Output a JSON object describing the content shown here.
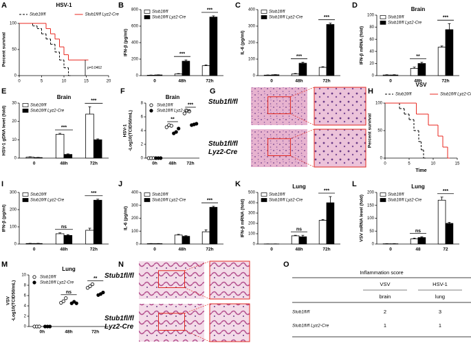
{
  "chart_data": [
    {
      "label": "A",
      "type": "survival",
      "title": "HSV-1",
      "ylabel": "Percent survival",
      "xlim": [
        0,
        20
      ],
      "xticks": [
        0,
        5,
        10,
        15,
        20
      ],
      "ylim": [
        0,
        100
      ],
      "yticks": [
        0,
        50,
        100
      ],
      "legend": "top",
      "series": [
        {
          "name": "Stub1fl/fl",
          "color": "#000000",
          "line_style": "dashed",
          "x": [
            0,
            3,
            4,
            5,
            6,
            7,
            8,
            9,
            10,
            11
          ],
          "values": [
            100,
            95,
            90,
            80,
            70,
            60,
            45,
            30,
            15,
            0
          ]
        },
        {
          "name": "Stub1fl/fl Lyz2-Cre",
          "color": "#e8261e",
          "line_style": "solid",
          "x": [
            0,
            6,
            7,
            8,
            9,
            10,
            11,
            15
          ],
          "values": [
            100,
            90,
            80,
            70,
            55,
            40,
            30,
            30
          ]
        }
      ],
      "annotations": [
        {
          "text": "p=0.0462"
        }
      ]
    },
    {
      "label": "B",
      "type": "bar",
      "ylabel": "IFN-β (pg/ml)",
      "categories": [
        "0",
        "48h",
        "72h"
      ],
      "ylim": [
        0,
        800
      ],
      "yticks": [
        0,
        200,
        400,
        600,
        800
      ],
      "legend": "upper left",
      "series": [
        {
          "name": "Stub1fl/fl",
          "color": "#ffffff",
          "values": [
            5,
            20,
            120
          ],
          "errors": [
            2,
            5,
            10
          ]
        },
        {
          "name": "Stub1fl/fl Lyz2-Cre",
          "color": "#000000",
          "values": [
            8,
            175,
            710
          ],
          "errors": [
            2,
            15,
            15
          ]
        }
      ],
      "annotations": [
        {
          "text": "***",
          "category": 1
        },
        {
          "text": "***",
          "category": 2
        }
      ]
    },
    {
      "label": "C",
      "type": "bar",
      "ylabel": "IL-6 (pg/ml)",
      "categories": [
        "0",
        "48h",
        "72h"
      ],
      "ylim": [
        0,
        400
      ],
      "yticks": [
        0,
        100,
        200,
        300,
        400
      ],
      "legend": "upper left",
      "series": [
        {
          "name": "Stub1fl/fl",
          "color": "#ffffff",
          "values": [
            3,
            10,
            50
          ],
          "errors": [
            1,
            3,
            4
          ]
        },
        {
          "name": "Stub1fl/fl Lyz2-Cre",
          "color": "#000000",
          "values": [
            5,
            75,
            310
          ],
          "errors": [
            1,
            6,
            8
          ]
        }
      ],
      "annotations": [
        {
          "text": "***",
          "category": 1
        },
        {
          "text": "***",
          "category": 2
        }
      ]
    },
    {
      "label": "D",
      "type": "bar",
      "title": "Brain",
      "ylabel": "IFN-β mRNA (fold)",
      "categories": [
        "0",
        "48h",
        "72h"
      ],
      "ylim": [
        0,
        100
      ],
      "yticks": [
        0,
        20,
        40,
        60,
        80,
        100
      ],
      "legend": "upper left",
      "series": [
        {
          "name": "Stub1fl/fl",
          "color": "#ffffff",
          "values": [
            1,
            12,
            47
          ],
          "errors": [
            0.5,
            2,
            2
          ]
        },
        {
          "name": "Stub1fl/fl Lyz2-Cre",
          "color": "#000000",
          "values": [
            1,
            20,
            76
          ],
          "errors": [
            0.5,
            2,
            10
          ]
        }
      ],
      "annotations": [
        {
          "text": "**",
          "category": 1
        },
        {
          "text": "***",
          "category": 2
        }
      ]
    },
    {
      "label": "E",
      "type": "bar",
      "title": "Brain",
      "ylabel": "HSV-1 gDNA level (fold)",
      "categories": [
        "0",
        "48h",
        "72h"
      ],
      "ylim": [
        0,
        30
      ],
      "yticks": [
        0,
        10,
        20,
        30
      ],
      "legend": "upper left",
      "series": [
        {
          "name": "Stub1fl/fl",
          "color": "#ffffff",
          "values": [
            0.5,
            13,
            24
          ],
          "errors": [
            0.2,
            0.5,
            4
          ]
        },
        {
          "name": "Stub1fl/fl Lyz2-Cre",
          "color": "#000000",
          "values": [
            0.3,
            2,
            10
          ],
          "errors": [
            0.1,
            0.3,
            0.5
          ]
        }
      ],
      "annotations": [
        {
          "text": "***",
          "category": 1
        },
        {
          "text": "***",
          "category": 2
        }
      ]
    },
    {
      "label": "F",
      "type": "dot",
      "title": "Brain",
      "ylabel": [
        "HSV-1",
        "-Log10(TCID50/mL)"
      ],
      "categories": [
        "0h",
        "48h",
        "72h"
      ],
      "ylim": [
        0,
        8
      ],
      "yticks": [
        0,
        2,
        4,
        6,
        8
      ],
      "legend": "upper left",
      "series": [
        {
          "name": "Stub1fl/fl",
          "color": "#000000",
          "marker": "open",
          "values": [
            [
              0,
              0,
              0
            ],
            [
              4.5,
              4.8,
              4.7
            ],
            [
              6.5,
              6.9,
              6.8
            ]
          ]
        },
        {
          "name": "Stub1fl/fl Lyz2-Cre",
          "color": "#000000",
          "marker": "filled",
          "values": [
            [
              0,
              0,
              0
            ],
            [
              3.6,
              3.8,
              4.3
            ],
            [
              4.8,
              4.9,
              5.0
            ]
          ]
        }
      ],
      "annotations": [
        {
          "text": "**",
          "category": 1
        },
        {
          "text": "***",
          "category": 2
        }
      ]
    },
    {
      "label": "H",
      "type": "survival",
      "title": "VSV",
      "ylabel": "Percent survival",
      "xlabel": "Time",
      "xlim": [
        0,
        15
      ],
      "xticks": [
        0,
        5,
        10,
        15
      ],
      "ylim": [
        0,
        100
      ],
      "yticks": [
        0,
        50,
        100
      ],
      "legend": "top",
      "series": [
        {
          "name": "Stub1fl/fl",
          "color": "#000000",
          "line_style": "dashed",
          "x": [
            0,
            3,
            4,
            5,
            6,
            7,
            7.5,
            8
          ],
          "values": [
            100,
            90,
            80,
            70,
            50,
            30,
            15,
            0
          ]
        },
        {
          "name": "Stub1fl/fl Lyz2-Cre",
          "color": "#e8261e",
          "line_style": "solid",
          "x": [
            0,
            6.5,
            9,
            11,
            12,
            13
          ],
          "values": [
            100,
            80,
            60,
            40,
            20,
            0
          ]
        }
      ]
    },
    {
      "label": "I",
      "type": "bar",
      "ylabel": "IFN-β (pg/ml)",
      "categories": [
        "0",
        "48h",
        "72h"
      ],
      "ylim": [
        0,
        300
      ],
      "yticks": [
        0,
        100,
        200,
        300
      ],
      "legend": "upper left",
      "series": [
        {
          "name": "Stub1fl/fl",
          "color": "#ffffff",
          "values": [
            3,
            60,
            80
          ],
          "errors": [
            1,
            5,
            12
          ]
        },
        {
          "name": "Stub1fl/fl Lyz2-Cre",
          "color": "#000000",
          "values": [
            3,
            50,
            255
          ],
          "errors": [
            1,
            5,
            6
          ]
        }
      ],
      "annotations": [
        {
          "text": "ns",
          "category": 1
        },
        {
          "text": "***",
          "category": 2
        }
      ]
    },
    {
      "label": "J",
      "type": "bar",
      "ylabel": "IL-6 (pg/ml)",
      "categories": [
        "0",
        "48h",
        "72h"
      ],
      "ylim": [
        0,
        400
      ],
      "yticks": [
        0,
        100,
        200,
        300,
        400
      ],
      "legend": "upper left",
      "series": [
        {
          "name": "Stub1fl/fl",
          "color": "#ffffff",
          "values": [
            3,
            70,
            95
          ],
          "errors": [
            1,
            5,
            15
          ]
        },
        {
          "name": "Stub1fl/fl Lyz2-Cre",
          "color": "#000000",
          "values": [
            3,
            60,
            285
          ],
          "errors": [
            1,
            5,
            8
          ]
        }
      ],
      "annotations": [
        {
          "text": "***",
          "category": 2
        }
      ]
    },
    {
      "label": "K",
      "type": "bar",
      "title": "Lung",
      "ylabel": "IFN-β mRNA (fold)",
      "categories": [
        "0",
        "48h",
        "72h"
      ],
      "ylim": [
        0,
        500
      ],
      "yticks": [
        0,
        100,
        200,
        300,
        400,
        500
      ],
      "legend": "upper left",
      "series": [
        {
          "name": "Stub1fl/fl",
          "color": "#ffffff",
          "values": [
            1,
            80,
            230
          ],
          "errors": [
            0.5,
            5,
            8
          ]
        },
        {
          "name": "Stub1fl/fl Lyz2-Cre",
          "color": "#000000",
          "values": [
            1,
            70,
            400
          ],
          "errors": [
            0.5,
            15,
            60
          ]
        }
      ],
      "annotations": [
        {
          "text": "ns",
          "category": 1
        },
        {
          "text": "***",
          "category": 2
        }
      ]
    },
    {
      "label": "L",
      "type": "bar",
      "title": "Lung",
      "ylabel": "VSV mRNA level (fold)",
      "categories": [
        "0",
        "48",
        "72"
      ],
      "ylim": [
        0,
        200
      ],
      "yticks": [
        0,
        50,
        100,
        150,
        200
      ],
      "legend": "upper left",
      "series": [
        {
          "name": "Stub1fl/fl",
          "color": "#ffffff",
          "values": [
            1,
            20,
            170
          ],
          "errors": [
            0.5,
            3,
            12
          ]
        },
        {
          "name": "Stub1fl/fl Lyz2-Cre",
          "color": "#000000",
          "values": [
            1,
            25,
            80
          ],
          "errors": [
            0.5,
            3,
            4
          ]
        }
      ],
      "annotations": [
        {
          "text": "ns",
          "category": 1
        },
        {
          "text": "***",
          "category": 2
        }
      ]
    },
    {
      "label": "M",
      "type": "dot",
      "title": "Lung",
      "ylabel": [
        "VSV",
        "-Log10(TCID50/mL)"
      ],
      "categories": [
        "0h",
        "48h",
        "72h"
      ],
      "ylim": [
        0,
        10
      ],
      "yticks": [
        0,
        2,
        4,
        6,
        8,
        10
      ],
      "legend": "upper left",
      "series": [
        {
          "name": "Stub1fl/fl",
          "color": "#000000",
          "marker": "open",
          "values": [
            [
              0,
              0,
              0
            ],
            [
              4.6,
              4.9,
              5.5
            ],
            [
              7.5,
              7.8,
              8.2
            ]
          ]
        },
        {
          "name": "Stub1fl/fl Lyz2-Cre",
          "color": "#000000",
          "marker": "filled",
          "values": [
            [
              0,
              0,
              0
            ],
            [
              4.5,
              4.8,
              4.5
            ],
            [
              6.1,
              6.3,
              6.6
            ]
          ]
        }
      ],
      "annotations": [
        {
          "text": "ns",
          "category": 1
        },
        {
          "text": "**",
          "category": 2
        }
      ]
    }
  ],
  "images": [
    {
      "label": "G",
      "rows": [
        "Stub1fl/fl",
        "Stub1fl/fl Lyz2-Cre"
      ]
    },
    {
      "label": "N",
      "rows": [
        "Stub1fl/fl",
        "Stub1fl/fl Lyz2-Cre"
      ]
    }
  ],
  "table": {
    "label": "O",
    "title": "Inflammation score",
    "columns": [
      "VSV",
      "HSV-1"
    ],
    "tissues": [
      "brain",
      "lung"
    ],
    "rows": [
      {
        "name": "Stub1fl/fl",
        "scores": [
          2,
          3
        ]
      },
      {
        "name": "Stub1fl/fl Lyz2-Cre",
        "scores": [
          1,
          1
        ]
      }
    ]
  }
}
